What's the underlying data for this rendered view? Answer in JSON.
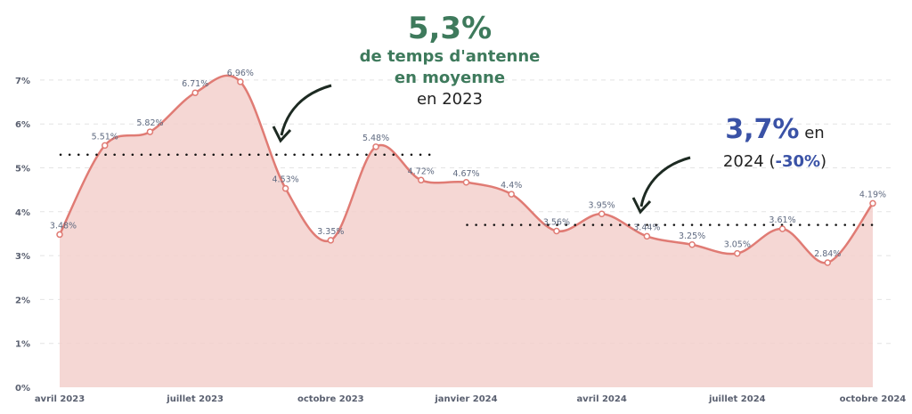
{
  "chart_data": {
    "type": "area",
    "x": [
      "2023-04",
      "2023-05",
      "2023-06",
      "2023-07",
      "2023-08",
      "2023-09",
      "2023-10",
      "2023-11",
      "2023-12",
      "2024-01",
      "2024-02",
      "2024-03",
      "2024-04",
      "2024-05",
      "2024-06",
      "2024-07",
      "2024-08",
      "2024-09",
      "2024-10"
    ],
    "values": [
      3.48,
      5.51,
      5.82,
      6.71,
      6.96,
      4.53,
      3.35,
      5.48,
      4.72,
      4.67,
      4.4,
      3.56,
      3.95,
      3.44,
      3.25,
      3.05,
      3.61,
      2.84,
      4.19
    ],
    "data_labels": [
      "3.48%",
      "5.51%",
      "5.82%",
      "6.71%",
      "6.96%",
      "4.53%",
      "3.35%",
      "5.48%",
      "4.72%",
      "4.67%",
      "4.4%",
      "3.56%",
      "3.95%",
      "3.44%",
      "3.25%",
      "3.05%",
      "3.61%",
      "2.84%",
      "4.19%"
    ],
    "x_tick_labels": [
      {
        "x": "2023-04",
        "label": "avril 2023"
      },
      {
        "x": "2023-07",
        "label": "juillet 2023"
      },
      {
        "x": "2023-10",
        "label": "octobre 2023"
      },
      {
        "x": "2024-01",
        "label": "janvier 2024"
      },
      {
        "x": "2024-04",
        "label": "avril 2024"
      },
      {
        "x": "2024-07",
        "label": "juillet 2024"
      },
      {
        "x": "2024-10",
        "label": "octobre 2024"
      }
    ],
    "y_ticks": [
      0,
      1,
      2,
      3,
      4,
      5,
      6,
      7
    ],
    "y_tick_labels": [
      "0%",
      "1%",
      "2%",
      "3%",
      "4%",
      "5%",
      "6%",
      "7%"
    ],
    "ylim": [
      0,
      7
    ],
    "grid": "horizontal dashed",
    "reference_lines": [
      {
        "value": 5.3,
        "from": "2023-04",
        "to": "2023-12"
      },
      {
        "value": 3.7,
        "from": "2024-01",
        "to": "2024-10"
      }
    ],
    "colors": {
      "line": "#e07b74",
      "fill": "#f3d0cd",
      "green": "#3e7a5c",
      "blue": "#3a52a6"
    }
  },
  "annotations": {
    "a2023": {
      "big": "5,3%",
      "line1": "de temps d'antenne",
      "line2": "en moyenne",
      "line3": "en 2023"
    },
    "a2024": {
      "big": "3,7%",
      "after_big": " en",
      "line2_pre": "2024 (",
      "line2_pct": "-30%",
      "line2_post": ")"
    }
  }
}
